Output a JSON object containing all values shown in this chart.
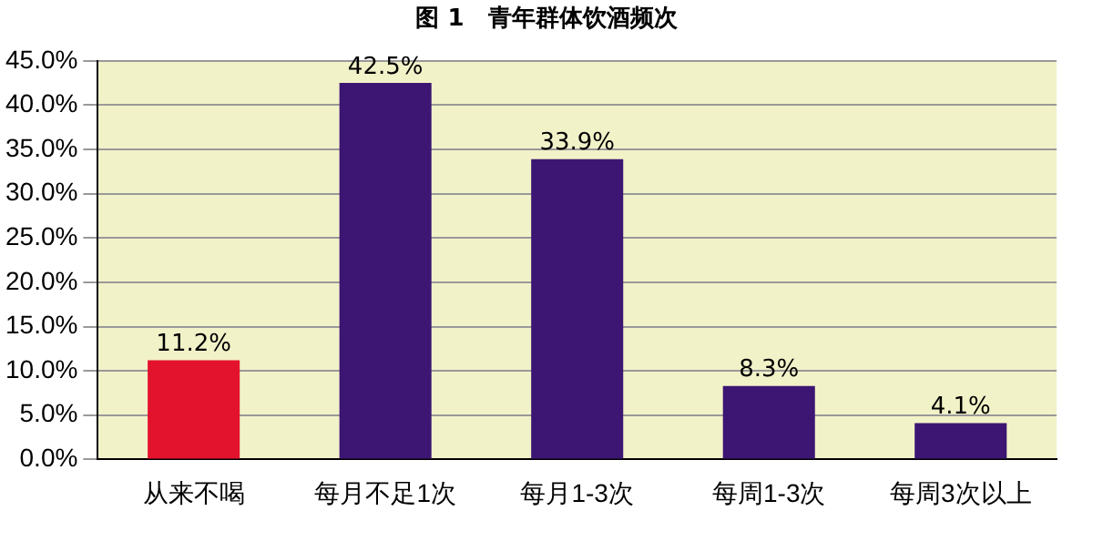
{
  "chart_data": {
    "type": "bar",
    "title": "图 1　青年群体饮酒频次",
    "categories": [
      "从来不喝",
      "每月不足1次",
      "每月1-3次",
      "每周1-3次",
      "每周3次以上"
    ],
    "values": [
      11.2,
      42.5,
      33.9,
      8.3,
      4.1
    ],
    "colors": [
      "#e3122d",
      "#3c1672",
      "#3c1672",
      "#3c1672",
      "#3c1672"
    ],
    "value_labels": [
      "11.2%",
      "42.5%",
      "33.9%",
      "8.3%",
      "4.1%"
    ],
    "ylim": [
      0,
      45
    ],
    "yticks": [
      {
        "value": 0,
        "label": "0.0%"
      },
      {
        "value": 5,
        "label": "5.0%"
      },
      {
        "value": 10,
        "label": "10.0%"
      },
      {
        "value": 15,
        "label": "15.0%"
      },
      {
        "value": 20,
        "label": "20.0%"
      },
      {
        "value": 25,
        "label": "25.0%"
      },
      {
        "value": 30,
        "label": "30.0%"
      },
      {
        "value": 35,
        "label": "35.0%"
      },
      {
        "value": 40,
        "label": "40.0%"
      },
      {
        "value": 45,
        "label": "45.0%"
      }
    ],
    "grid": "y"
  }
}
